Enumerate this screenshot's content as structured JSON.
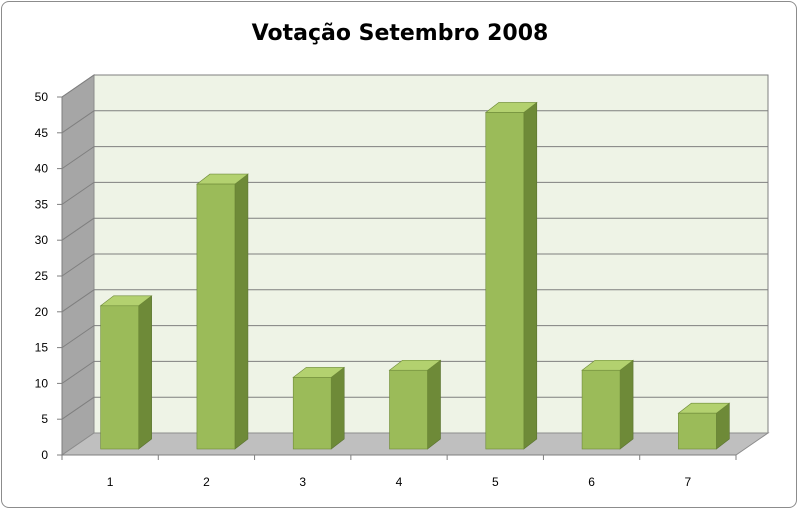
{
  "chart_data": {
    "type": "bar",
    "title": "Votação Setembro 2008",
    "xlabel": "",
    "ylabel": "",
    "categories": [
      "1",
      "2",
      "3",
      "4",
      "5",
      "6",
      "7"
    ],
    "values": [
      20,
      37,
      10,
      11,
      47,
      11,
      5
    ],
    "ylim": [
      0,
      50
    ],
    "yticks": [
      "0",
      "5",
      "10",
      "15",
      "20",
      "25",
      "30",
      "35",
      "40",
      "45",
      "50"
    ],
    "grid": true,
    "legend": "none",
    "colors": {
      "bar_front": "#9bbb59",
      "bar_side": "#6e8a38",
      "bar_top": "#b3d16f",
      "back_wall": "#eef3e6",
      "side_wall": "#a6a6a6",
      "floor": "#bfbfbf"
    }
  }
}
